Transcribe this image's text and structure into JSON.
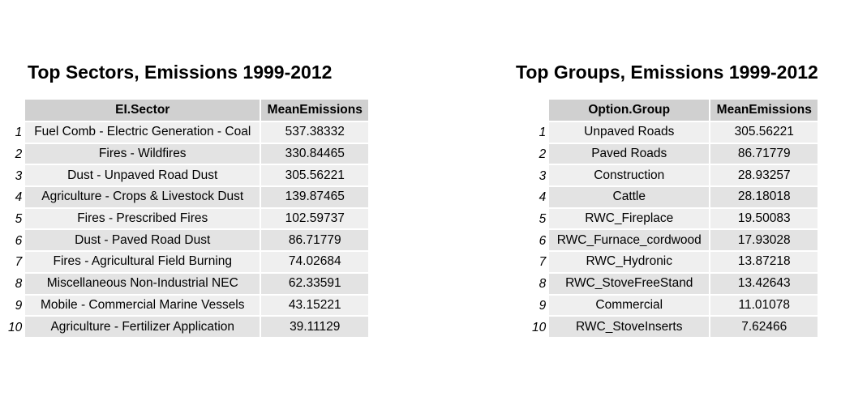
{
  "chart_data": [
    {
      "type": "table",
      "title": "Top Sectors, Emissions 1999-2012",
      "columns": [
        "EI.Sector",
        "MeanEmissions"
      ],
      "rows": [
        {
          "index": "1",
          "label": "Fuel Comb - Electric Generation - Coal",
          "value": "537.38332"
        },
        {
          "index": "2",
          "label": "Fires - Wildfires",
          "value": "330.84465"
        },
        {
          "index": "3",
          "label": "Dust - Unpaved Road Dust",
          "value": "305.56221"
        },
        {
          "index": "4",
          "label": "Agriculture - Crops & Livestock Dust",
          "value": "139.87465"
        },
        {
          "index": "5",
          "label": "Fires - Prescribed Fires",
          "value": "102.59737"
        },
        {
          "index": "6",
          "label": "Dust - Paved Road Dust",
          "value": "86.71779"
        },
        {
          "index": "7",
          "label": "Fires - Agricultural Field Burning",
          "value": "74.02684"
        },
        {
          "index": "8",
          "label": "Miscellaneous Non-Industrial NEC",
          "value": "62.33591"
        },
        {
          "index": "9",
          "label": "Mobile - Commercial Marine Vessels",
          "value": "43.15221"
        },
        {
          "index": "10",
          "label": "Agriculture - Fertilizer Application",
          "value": "39.11129"
        }
      ]
    },
    {
      "type": "table",
      "title": "Top Groups, Emissions 1999-2012",
      "columns": [
        "Option.Group",
        "MeanEmissions"
      ],
      "rows": [
        {
          "index": "1",
          "label": "Unpaved Roads",
          "value": "305.56221"
        },
        {
          "index": "2",
          "label": "Paved Roads",
          "value": "86.71779"
        },
        {
          "index": "3",
          "label": "Construction",
          "value": "28.93257"
        },
        {
          "index": "4",
          "label": "Cattle",
          "value": "28.18018"
        },
        {
          "index": "5",
          "label": "RWC_Fireplace",
          "value": "19.50083"
        },
        {
          "index": "6",
          "label": "RWC_Furnace_cordwood",
          "value": "17.93028"
        },
        {
          "index": "7",
          "label": "RWC_Hydronic",
          "value": "13.87218"
        },
        {
          "index": "8",
          "label": "RWC_StoveFreeStand",
          "value": "13.42643"
        },
        {
          "index": "9",
          "label": "Commercial",
          "value": "11.01078"
        },
        {
          "index": "10",
          "label": "RWC_StoveInserts",
          "value": "7.62466"
        }
      ]
    }
  ]
}
